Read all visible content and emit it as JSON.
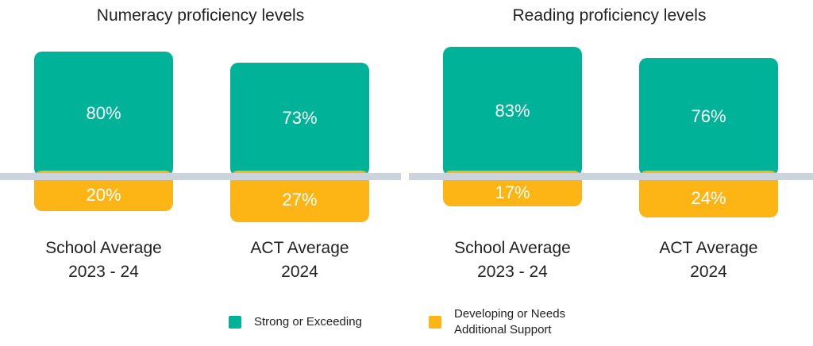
{
  "chart_data": {
    "type": "diverging-bar",
    "titles": [
      "Numeracy proficiency levels",
      "Reading proficiency levels"
    ],
    "categories": [
      "School Average\n2023 - 24",
      "ACT Average\n2024",
      "School Average\n2023 - 24",
      "ACT Average\n2024"
    ],
    "series": [
      {
        "name": "Strong or Exceeding",
        "color": "#00b398",
        "values": [
          80,
          73,
          83,
          76
        ],
        "value_labels": [
          "80%",
          "73%",
          "83%",
          "76%"
        ]
      },
      {
        "name": "Developing or Needs\nAdditional Support",
        "color": "#fdb515",
        "values": [
          20,
          27,
          17,
          24
        ],
        "value_labels": [
          "20%",
          "27%",
          "17%",
          "24%"
        ]
      }
    ]
  }
}
